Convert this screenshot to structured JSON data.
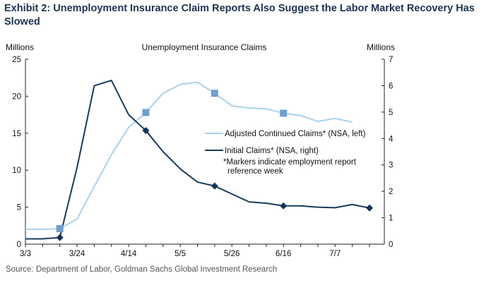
{
  "exhibit_title": "Exhibit 2: Unemployment Insurance Claim Reports Also Suggest the Labor Market Recovery Has Slowed",
  "source": "Source: Department of Labor, Goldman Sachs Global Investment Research",
  "colors": {
    "continued": "#a9d2ec",
    "initial": "#1a3a5c",
    "marker_continued": "#6e9fd0",
    "marker_initial": "#143456"
  },
  "chart_data": {
    "type": "line",
    "title": "Unemployment Insurance Claims",
    "ylabel_left": "Millions",
    "ylabel_right": "Millions",
    "ylim_left": [
      0,
      25
    ],
    "ylim_right": [
      0,
      7
    ],
    "yticks_left": [
      "0",
      "5",
      "10",
      "15",
      "20",
      "25"
    ],
    "yticks_right": [
      "0",
      "1",
      "2",
      "3",
      "4",
      "5",
      "6",
      "7"
    ],
    "xtick_labels": [
      "3/3",
      "3/24",
      "4/14",
      "5/5",
      "5/26",
      "6/16",
      "7/7"
    ],
    "grid": false,
    "legend_position": "right",
    "annotation": "*Markers indicate employment report reference week",
    "series": [
      {
        "name": "Adjusted Continued Claims* (NSA, left)",
        "axis": "left",
        "x": [
          "3/3",
          "3/10",
          "3/17",
          "3/24",
          "3/31",
          "4/7",
          "4/14",
          "4/21",
          "4/28",
          "5/5",
          "5/12",
          "5/19",
          "5/26",
          "6/2",
          "6/9",
          "6/16",
          "6/23",
          "6/30",
          "7/7",
          "7/14"
        ],
        "values": [
          2.0,
          2.0,
          2.1,
          3.4,
          7.8,
          12.1,
          15.8,
          17.8,
          20.4,
          21.6,
          21.9,
          20.4,
          18.7,
          18.4,
          18.3,
          17.7,
          17.4,
          16.6,
          17.0,
          16.5
        ],
        "markers_at": [
          "3/17",
          "4/21",
          "5/19",
          "6/16"
        ]
      },
      {
        "name": "Initial Claims* (NSA, right)",
        "axis": "right",
        "x": [
          "3/3",
          "3/10",
          "3/17",
          "3/24",
          "3/31",
          "4/7",
          "4/14",
          "4/21",
          "4/28",
          "5/5",
          "5/12",
          "5/19",
          "5/26",
          "6/2",
          "6/9",
          "6/16",
          "6/23",
          "6/30",
          "7/7",
          "7/14",
          "7/21"
        ],
        "values": [
          0.2,
          0.2,
          0.25,
          2.9,
          6.0,
          6.2,
          4.9,
          4.3,
          3.5,
          2.85,
          2.35,
          2.2,
          1.9,
          1.6,
          1.55,
          1.45,
          1.45,
          1.4,
          1.38,
          1.5,
          1.37
        ],
        "markers_at": [
          "3/17",
          "4/21",
          "5/19",
          "6/16",
          "7/21"
        ]
      }
    ]
  }
}
